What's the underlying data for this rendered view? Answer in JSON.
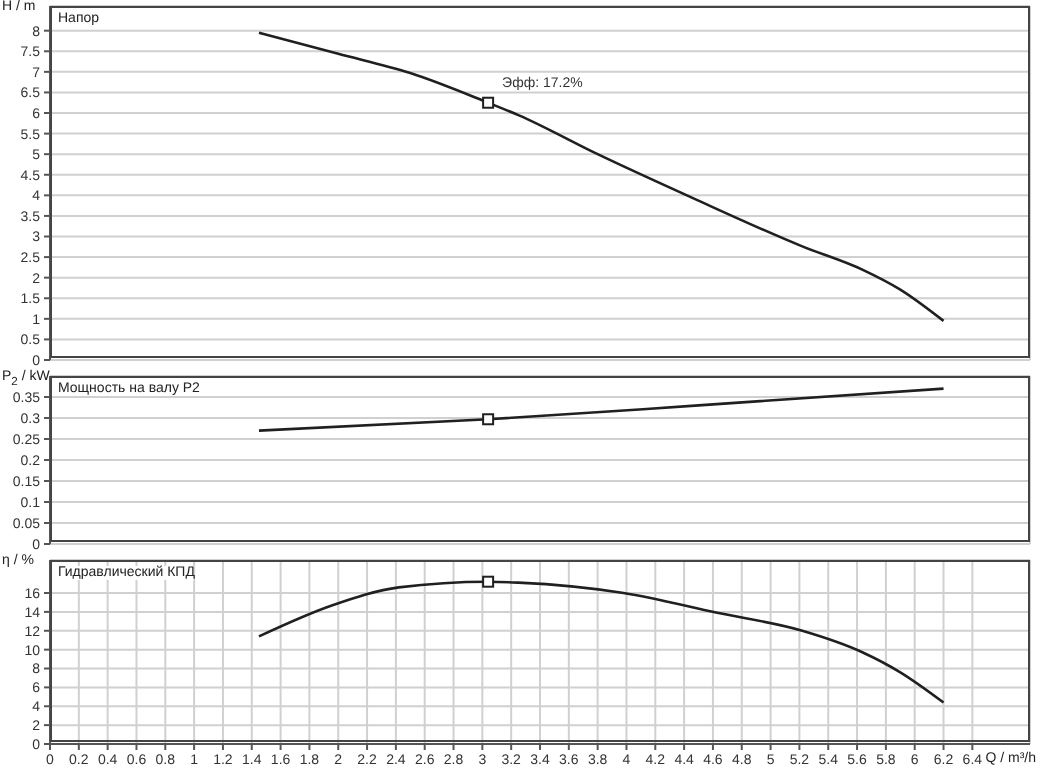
{
  "chart_data": [
    {
      "type": "line",
      "title": "Напор",
      "ylabel": "H / m",
      "xlim": [
        0,
        6.8
      ],
      "xticks": [
        0,
        0.2,
        0.4,
        0.6,
        0.8,
        1,
        1.2,
        1.4,
        1.6,
        1.8,
        2,
        2.2,
        2.4,
        2.6,
        2.8,
        3,
        3.2,
        3.4,
        3.6,
        3.8,
        4,
        4.2,
        4.4,
        4.6,
        4.8,
        5,
        5.2,
        5.4,
        5.6,
        5.8,
        6,
        6.2,
        6.4
      ],
      "ylim": [
        0,
        8.6
      ],
      "yticks": [
        0,
        0.5,
        1,
        1.5,
        2,
        2.5,
        3,
        3.5,
        4,
        4.5,
        5,
        5.5,
        6,
        6.5,
        7,
        7.5,
        8
      ],
      "grid": true,
      "tick_labels": "y",
      "series": [
        {
          "color": "#202020",
          "x": [
            1.45,
            2.0,
            2.5,
            3.04,
            3.25,
            3.8,
            4.45,
            5.22,
            5.64,
            5.9,
            6.2
          ],
          "values": [
            7.95,
            7.44,
            6.97,
            6.25,
            5.95,
            5.0,
            3.95,
            2.76,
            2.19,
            1.71,
            0.95
          ]
        },
        {
          "type": "scatter",
          "marker": "square",
          "color": "#202020",
          "x": [
            3.04
          ],
          "values": [
            6.25
          ]
        }
      ],
      "annotations": [
        {
          "text": "Эфф: 17.2%",
          "x": 3.04,
          "y": 6.25
        }
      ]
    },
    {
      "type": "line",
      "title": "Мощность на валу P2",
      "ylabel": "P$_{2}$ / kW",
      "xlim": [
        0,
        6.8
      ],
      "xticks": [
        0,
        0.2,
        0.4,
        0.6,
        0.8,
        1,
        1.2,
        1.4,
        1.6,
        1.8,
        2,
        2.2,
        2.4,
        2.6,
        2.8,
        3,
        3.2,
        3.4,
        3.6,
        3.8,
        4,
        4.2,
        4.4,
        4.6,
        4.8,
        5,
        5.2,
        5.4,
        5.6,
        5.8,
        6,
        6.2,
        6.4
      ],
      "ylim": [
        0,
        0.4
      ],
      "yticks": [
        0,
        0.05,
        0.1,
        0.15,
        0.2,
        0.25,
        0.3,
        0.35
      ],
      "grid": true,
      "tick_labels": "y",
      "series": [
        {
          "color": "#202020",
          "x": [
            1.45,
            3.04,
            4.5,
            6.2
          ],
          "values": [
            0.27,
            0.297,
            0.33,
            0.37
          ]
        },
        {
          "type": "scatter",
          "marker": "square",
          "color": "#202020",
          "x": [
            3.04
          ],
          "values": [
            0.297
          ]
        }
      ]
    },
    {
      "type": "line",
      "title": "Гидравлический КПД",
      "ylabel": "η / %",
      "xlabel": "Q / m³/h",
      "xlim": [
        0,
        6.8
      ],
      "xticks": [
        0,
        0.2,
        0.4,
        0.6,
        0.8,
        1,
        1.2,
        1.4,
        1.6,
        1.8,
        2,
        2.2,
        2.4,
        2.6,
        2.8,
        3,
        3.2,
        3.4,
        3.6,
        3.8,
        4,
        4.2,
        4.4,
        4.6,
        4.8,
        5,
        5.2,
        5.4,
        5.6,
        5.8,
        6,
        6.2,
        6.4
      ],
      "ylim": [
        0,
        19.5
      ],
      "yticks": [
        0,
        2,
        4,
        6,
        8,
        10,
        12,
        14,
        16
      ],
      "grid": true,
      "series": [
        {
          "color": "#202020",
          "x": [
            1.45,
            1.96,
            2.42,
            3.04,
            3.25,
            3.98,
            4.63,
            5.22,
            5.64,
            5.9,
            6.2
          ],
          "values": [
            11.4,
            14.7,
            16.6,
            17.2,
            17.1,
            16.0,
            13.9,
            12.0,
            9.7,
            7.6,
            4.4
          ]
        },
        {
          "type": "scatter",
          "marker": "square",
          "color": "#202020",
          "x": [
            3.04
          ],
          "values": [
            17.2
          ]
        }
      ]
    }
  ]
}
